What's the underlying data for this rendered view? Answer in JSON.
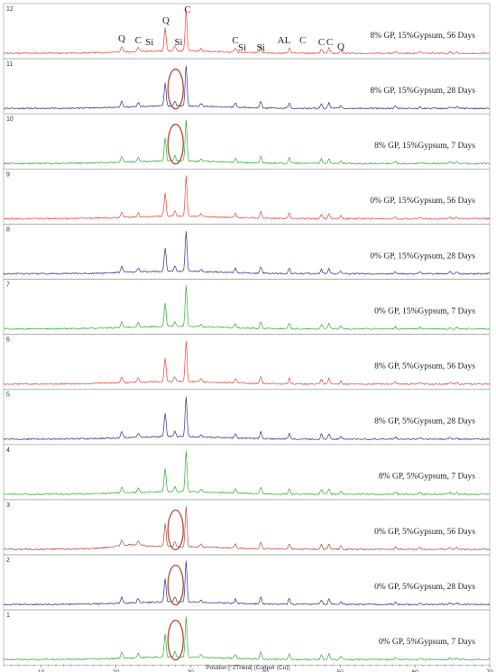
{
  "chart_data": {
    "type": "line",
    "xlabel": "Position [°2Theta] (Copper (Cu))",
    "xlim": [
      5,
      70
    ],
    "x_ticks": [
      10,
      20,
      30,
      40,
      50,
      60,
      70
    ],
    "grid": false,
    "peak_labels": [
      {
        "text": "Q",
        "x": 20.8
      },
      {
        "text": "C",
        "x": 23.0
      },
      {
        "text": "Si",
        "x": 24.5
      },
      {
        "text": "Q",
        "x": 26.7
      },
      {
        "text": "Si",
        "x": 28.4
      },
      {
        "text": "C",
        "x": 29.6
      },
      {
        "text": "C",
        "x": 36.0
      },
      {
        "text": "Si",
        "x": 36.9
      },
      {
        "text": "Si",
        "x": 39.4
      },
      {
        "text": "AL",
        "x": 42.5
      },
      {
        "text": "C",
        "x": 45.0
      },
      {
        "text": "C",
        "x": 47.5
      },
      {
        "text": "C",
        "x": 48.6
      },
      {
        "text": "Q",
        "x": 50.1
      }
    ],
    "series": [
      {
        "number": "12",
        "name": "8% GP, 15%Gypsum, 56 Days",
        "color": "#e8453c",
        "circle": false
      },
      {
        "number": "11",
        "name": "8% GP, 15%Gypsum, 28 Days",
        "color": "#2e2e8c",
        "circle": true
      },
      {
        "number": "10",
        "name": "8% GP, 15%Gypsum, 7 Days",
        "color": "#2fae2f",
        "circle": true
      },
      {
        "number": "9",
        "name": "0% GP, 15%Gypsum, 56 Days",
        "color": "#e8453c",
        "circle": false
      },
      {
        "number": "8",
        "name": "0% GP, 15%Gypsum, 28 Days",
        "color": "#2e2e8c",
        "circle": false
      },
      {
        "number": "7",
        "name": "0% GP, 15%Gypsum, 7 Days",
        "color": "#2fae2f",
        "circle": false
      },
      {
        "number": "6",
        "name": "8% GP, 5%Gypsum, 56 Days",
        "color": "#e8453c",
        "circle": false
      },
      {
        "number": "5",
        "name": "8% GP, 5%Gypsum, 28 Days",
        "color": "#2e2e8c",
        "circle": false
      },
      {
        "number": "4",
        "name": "8% GP, 5%Gypsum, 7 Days",
        "color": "#2fae2f",
        "circle": false
      },
      {
        "number": "3",
        "name": "0% GP, 5%Gypsum, 56  Days",
        "color": "#b5473a",
        "circle": true
      },
      {
        "number": "2",
        "name": "0% GP, 5%Gypsum, 28 Days",
        "color": "#2e2e8c",
        "circle": true
      },
      {
        "number": "1",
        "name": "0% GP, 5%Gypsum, 7 Days",
        "color": "#2fae2f",
        "circle": true
      }
    ],
    "peaks": [
      {
        "x": 20.8,
        "h": 0.14
      },
      {
        "x": 23.0,
        "h": 0.1
      },
      {
        "x": 26.6,
        "h": 0.55
      },
      {
        "x": 27.9,
        "h": 0.12
      },
      {
        "x": 29.4,
        "h": 0.95
      },
      {
        "x": 31.4,
        "h": 0.06
      },
      {
        "x": 36.0,
        "h": 0.1
      },
      {
        "x": 39.4,
        "h": 0.16
      },
      {
        "x": 43.2,
        "h": 0.13
      },
      {
        "x": 47.5,
        "h": 0.11
      },
      {
        "x": 48.5,
        "h": 0.13
      },
      {
        "x": 50.1,
        "h": 0.07
      },
      {
        "x": 57.4,
        "h": 0.05
      },
      {
        "x": 60.7,
        "h": 0.04
      },
      {
        "x": 64.7,
        "h": 0.04
      },
      {
        "x": 65.6,
        "h": 0.04
      }
    ],
    "circle_x": 28.0,
    "colors": {
      "circle": "#b5473a",
      "panel_border": "#9a9a9a",
      "axis": "#333333"
    }
  }
}
